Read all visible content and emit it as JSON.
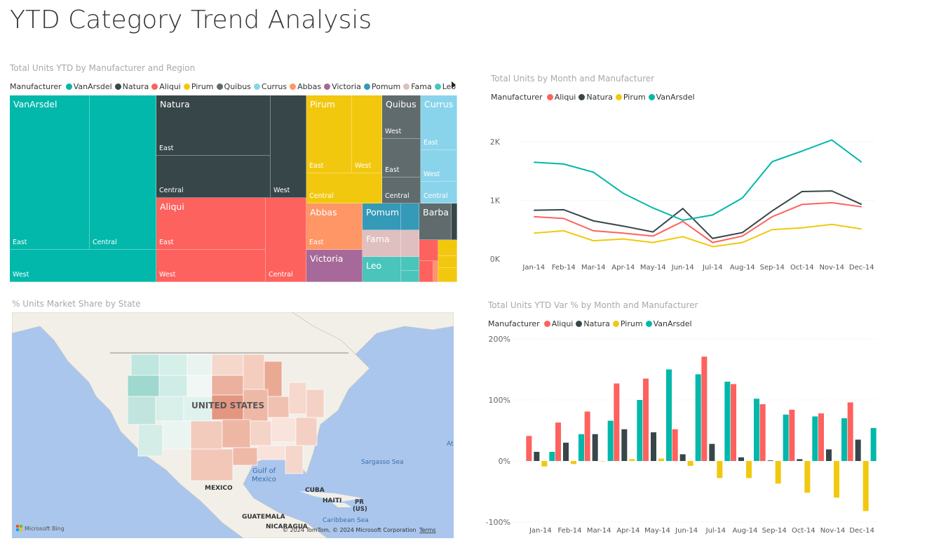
{
  "page": {
    "title": "YTD Category Trend Analysis"
  },
  "treemap": {
    "title": "Total Units YTD by Manufacturer and Region",
    "legend_label": "Manufacturer",
    "legend": [
      {
        "name": "VanArsdel",
        "color": "#01b8aa"
      },
      {
        "name": "Natura",
        "color": "#374649"
      },
      {
        "name": "Aliqui",
        "color": "#fd625e"
      },
      {
        "name": "Pirum",
        "color": "#f2c80f"
      },
      {
        "name": "Quibus",
        "color": "#5f6b6d"
      },
      {
        "name": "Currus",
        "color": "#8ad4eb"
      },
      {
        "name": "Abbas",
        "color": "#fe9666"
      },
      {
        "name": "Victoria",
        "color": "#a66999"
      },
      {
        "name": "Pomum",
        "color": "#3599b8"
      },
      {
        "name": "Fama",
        "color": "#dfbfbf"
      },
      {
        "name": "Leo",
        "color": "#4ac5bb"
      }
    ],
    "labels": {
      "vanarsdel": "VanArsdel",
      "natura": "Natura",
      "pirum": "Pirum",
      "quibus": "Quibus",
      "currus": "Currus",
      "aliqui": "Aliqui",
      "abbas": "Abbas",
      "pomum": "Pomum",
      "barba": "Barba",
      "fama": "Fama",
      "victoria": "Victoria",
      "leo": "Leo",
      "east": "East",
      "central": "Central",
      "west": "West"
    }
  },
  "map": {
    "title": "% Units Market Share by State",
    "labels": {
      "us": "UNITED STATES",
      "gulf1": "Gulf of",
      "gulf2": "Mexico",
      "sargasso": "Sargasso Sea",
      "mexico": "MEXICO",
      "cuba": "CUBA",
      "haiti": "HAITI",
      "pr1": "PR",
      "pr2": "(US)",
      "guatemala": "GUATEMALA",
      "nicaragua": "NICARAGUA",
      "caribbean": "Caribbean Sea",
      "atlantic": "At"
    },
    "attribution": "© 2024 TomTom, © 2024 Microsoft Corporation",
    "terms": "Terms",
    "bing": "Microsoft Bing"
  },
  "line_chart": {
    "title": "Total Units by Month and Manufacturer",
    "legend_label": "Manufacturer"
  },
  "bar_chart": {
    "title": "Total Units YTD Var % by Month and Manufacturer",
    "legend_label": "Manufacturer"
  },
  "chart_data": [
    {
      "type": "line",
      "title": "Total Units by Month and Manufacturer",
      "categories": [
        "Jan-14",
        "Feb-14",
        "Mar-14",
        "Apr-14",
        "May-14",
        "Jun-14",
        "Jul-14",
        "Aug-14",
        "Sep-14",
        "Oct-14",
        "Nov-14",
        "Dec-14"
      ],
      "yticks": [
        "0K",
        "1K",
        "2K"
      ],
      "ylim": [
        0,
        2000
      ],
      "series": [
        {
          "name": "Aliqui",
          "color": "#fd625e",
          "values": [
            720,
            690,
            480,
            440,
            390,
            640,
            280,
            390,
            720,
            930,
            960,
            890
          ]
        },
        {
          "name": "Natura",
          "color": "#374649",
          "values": [
            830,
            840,
            650,
            560,
            460,
            860,
            350,
            450,
            820,
            1150,
            1160,
            930
          ]
        },
        {
          "name": "Pirum",
          "color": "#f2c80f",
          "values": [
            440,
            480,
            310,
            340,
            280,
            380,
            210,
            280,
            500,
            530,
            590,
            510
          ]
        },
        {
          "name": "VanArsdel",
          "color": "#01b8aa",
          "values": [
            1650,
            1620,
            1480,
            1120,
            870,
            660,
            750,
            1040,
            1660,
            1840,
            2030,
            1650
          ]
        }
      ]
    },
    {
      "type": "bar",
      "title": "Total Units YTD Var % by Month and Manufacturer",
      "categories": [
        "Jan-14",
        "Feb-14",
        "Mar-14",
        "Apr-14",
        "May-14",
        "Jun-14",
        "Jul-14",
        "Aug-14",
        "Sep-14",
        "Oct-14",
        "Nov-14",
        "Dec-14"
      ],
      "yticks": [
        "-100%",
        "0%",
        "100%",
        "200%"
      ],
      "ylim": [
        -100,
        200
      ],
      "series": [
        {
          "name": "Aliqui",
          "color": "#fd625e",
          "values": [
            41,
            63,
            81,
            127,
            135,
            52,
            171,
            126,
            93,
            84,
            78,
            96
          ]
        },
        {
          "name": "Natura",
          "color": "#374649",
          "values": [
            15,
            30,
            44,
            52,
            47,
            11,
            28,
            6,
            1,
            3,
            19,
            35
          ]
        },
        {
          "name": "Pirum",
          "color": "#f2c80f",
          "values": [
            -9,
            -5,
            0,
            3,
            4,
            -8,
            -28,
            -28,
            -37,
            -52,
            -60,
            -82
          ]
        },
        {
          "name": "VanArsdel",
          "color": "#01b8aa",
          "values": [
            15,
            44,
            66,
            100,
            150,
            142,
            130,
            102,
            76,
            73,
            70,
            54
          ]
        }
      ]
    }
  ]
}
